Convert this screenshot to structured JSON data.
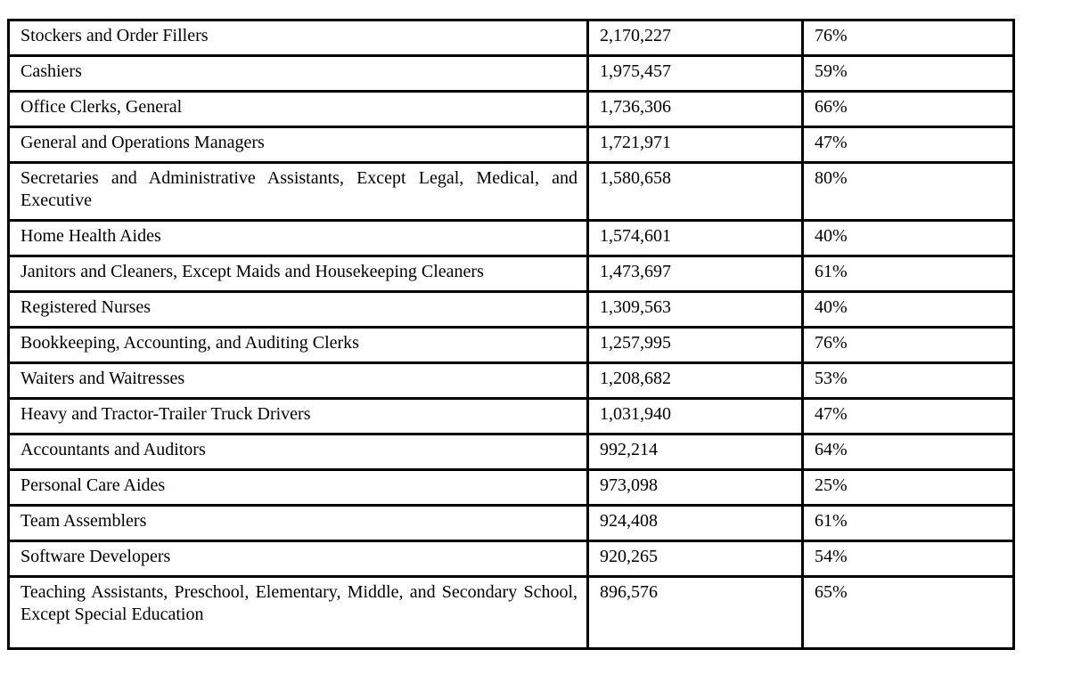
{
  "table": {
    "rows": [
      {
        "occupation": "Stockers and Order Fillers",
        "employment": "2,170,227",
        "percent": "76%",
        "tall": false
      },
      {
        "occupation": "Cashiers",
        "employment": "1,975,457",
        "percent": "59%",
        "tall": false
      },
      {
        "occupation": "Office Clerks, General",
        "employment": "1,736,306",
        "percent": "66%",
        "tall": false
      },
      {
        "occupation": "General and Operations Managers",
        "employment": "1,721,971",
        "percent": "47%",
        "tall": false
      },
      {
        "occupation": "Secretaries and Administrative Assistants, Except Legal, Medical, and Executive",
        "employment": "1,580,658",
        "percent": "80%",
        "tall": false
      },
      {
        "occupation": "Home Health Aides",
        "employment": "1,574,601",
        "percent": "40%",
        "tall": false
      },
      {
        "occupation": "Janitors and Cleaners, Except Maids and Housekeeping Cleaners",
        "employment": "1,473,697",
        "percent": "61%",
        "tall": false
      },
      {
        "occupation": "Registered Nurses",
        "employment": "1,309,563",
        "percent": "40%",
        "tall": false
      },
      {
        "occupation": "Bookkeeping, Accounting, and Auditing Clerks",
        "employment": "1,257,995",
        "percent": "76%",
        "tall": false
      },
      {
        "occupation": "Waiters and Waitresses",
        "employment": "1,208,682",
        "percent": "53%",
        "tall": false
      },
      {
        "occupation": "Heavy and Tractor-Trailer Truck Drivers",
        "employment": "1,031,940",
        "percent": "47%",
        "tall": false
      },
      {
        "occupation": "Accountants and Auditors",
        "employment": "992,214",
        "percent": "64%",
        "tall": false
      },
      {
        "occupation": "Personal Care Aides",
        "employment": "973,098",
        "percent": "25%",
        "tall": false
      },
      {
        "occupation": "Team Assemblers",
        "employment": "924,408",
        "percent": "61%",
        "tall": false
      },
      {
        "occupation": "Software Developers",
        "employment": "920,265",
        "percent": "54%",
        "tall": false
      },
      {
        "occupation": "Teaching Assistants, Preschool, Elementary, Middle, and Secondary School, Except Special Education",
        "employment": "896,576",
        "percent": "65%",
        "tall": true
      }
    ],
    "colors": {
      "border": "#000000",
      "text": "#000000",
      "background": "#ffffff"
    }
  }
}
